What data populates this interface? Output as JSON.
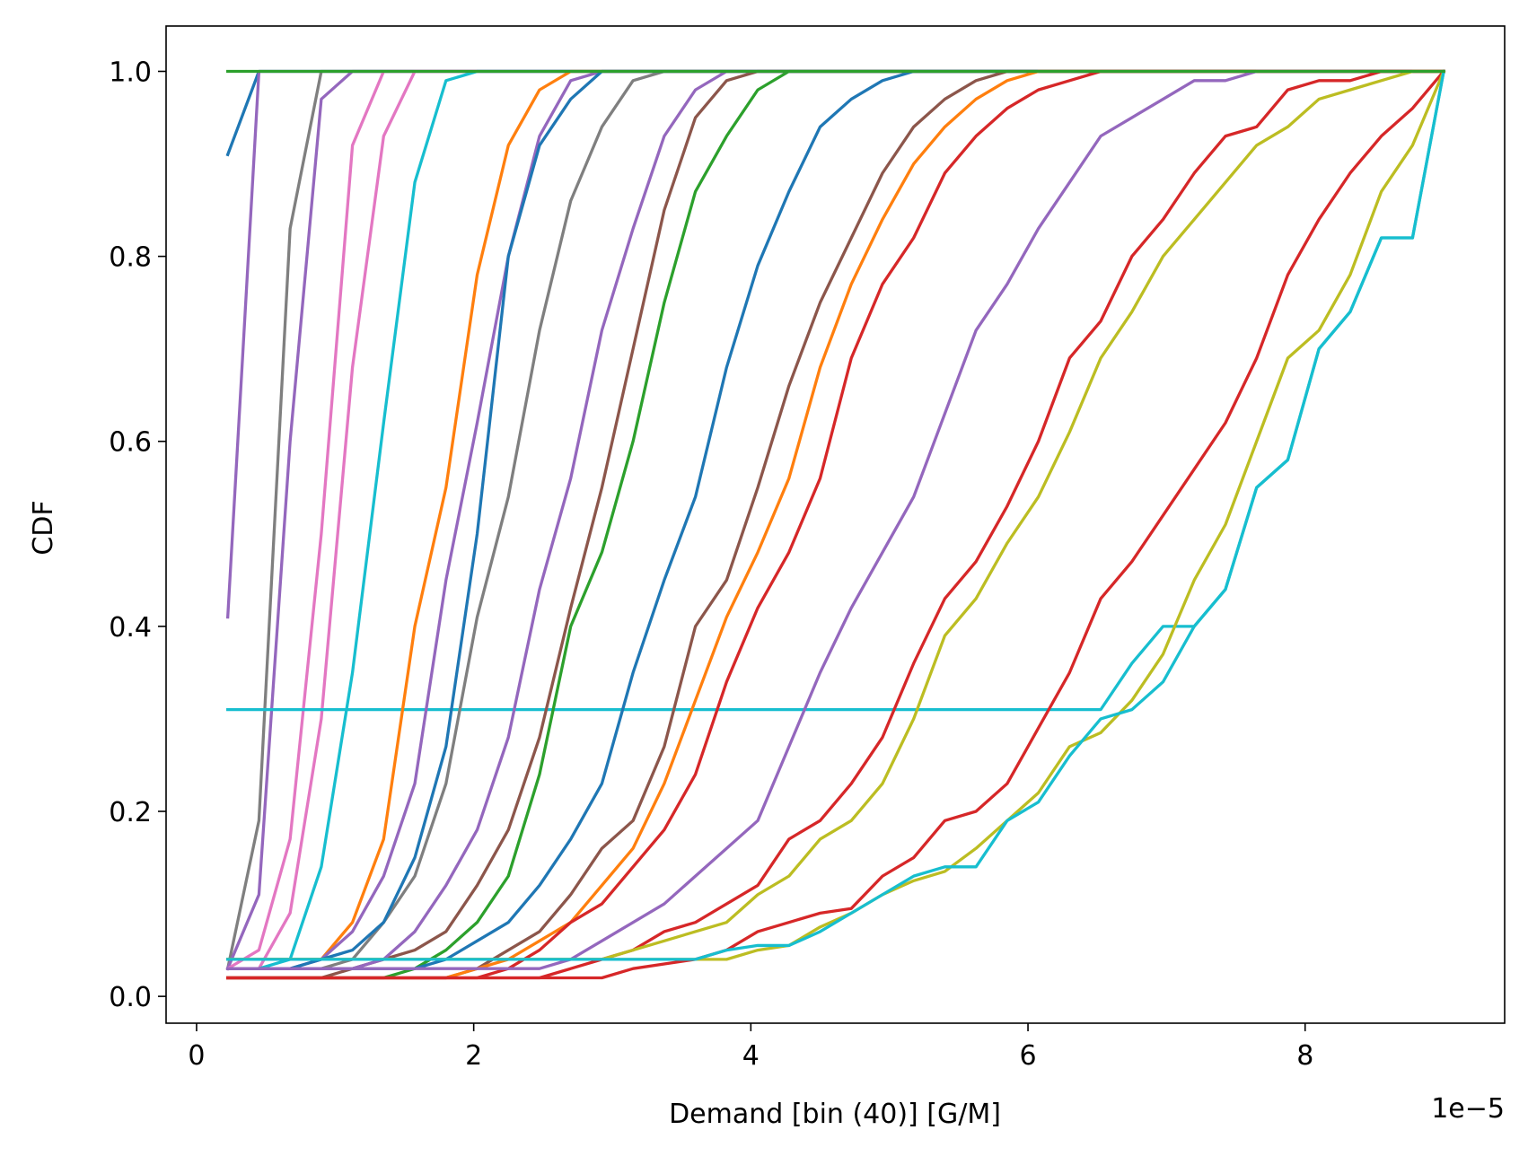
{
  "chart_data": {
    "type": "line",
    "xlabel": "Demand [bin (40)] [G/M]",
    "ylabel": "CDF",
    "x_offset_label": "1e−5",
    "xlim": [
      -0.22,
      9.44
    ],
    "ylim": [
      -0.029,
      1.049
    ],
    "xticks": [
      0,
      2,
      4,
      6,
      8
    ],
    "yticks": [
      {
        "value": 0,
        "label": "0.0"
      },
      0.2,
      0.4,
      0.6,
      0.8,
      {
        "value": 1,
        "label": "1.0"
      }
    ],
    "x": [
      0.225,
      0.45,
      0.675,
      0.9,
      1.125,
      1.35,
      1.575,
      1.8,
      2.025,
      2.25,
      2.475,
      2.7,
      2.925,
      3.15,
      3.375,
      3.6,
      3.825,
      4.05,
      4.275,
      4.5,
      4.725,
      4.95,
      5.175,
      5.4,
      5.625,
      5.85,
      6.075,
      6.3,
      6.525,
      6.75,
      6.975,
      7.2,
      7.425,
      7.65,
      7.875,
      8.1,
      8.325,
      8.55,
      8.775,
      9.0
    ],
    "series": [
      {
        "color": "#1f77b4",
        "values": [
          0.91,
          1,
          1,
          1,
          1,
          1,
          1,
          1,
          1,
          1,
          1,
          1,
          1,
          1,
          1,
          1,
          1,
          1,
          1,
          1,
          1,
          1,
          1,
          1,
          1,
          1,
          1,
          1,
          1,
          1,
          1,
          1,
          1,
          1,
          1,
          1,
          1,
          1,
          1,
          1
        ]
      },
      {
        "color": "#9467bd",
        "values": [
          0.41,
          1,
          1,
          1,
          1,
          1,
          1,
          1,
          1,
          1,
          1,
          1,
          1,
          1,
          1,
          1,
          1,
          1,
          1,
          1,
          1,
          1,
          1,
          1,
          1,
          1,
          1,
          1,
          1,
          1,
          1,
          1,
          1,
          1,
          1,
          1,
          1,
          1,
          1,
          1
        ]
      },
      {
        "color": "#7f7f7f",
        "values": [
          0.03,
          0.19,
          0.83,
          1,
          1,
          1,
          1,
          1,
          1,
          1,
          1,
          1,
          1,
          1,
          1,
          1,
          1,
          1,
          1,
          1,
          1,
          1,
          1,
          1,
          1,
          1,
          1,
          1,
          1,
          1,
          1,
          1,
          1,
          1,
          1,
          1,
          1,
          1,
          1,
          1
        ]
      },
      {
        "color": "#9467bd",
        "values": [
          0.03,
          0.11,
          0.6,
          0.97,
          1,
          1,
          1,
          1,
          1,
          1,
          1,
          1,
          1,
          1,
          1,
          1,
          1,
          1,
          1,
          1,
          1,
          1,
          1,
          1,
          1,
          1,
          1,
          1,
          1,
          1,
          1,
          1,
          1,
          1,
          1,
          1,
          1,
          1,
          1,
          1
        ]
      },
      {
        "color": "#e377c2",
        "values": [
          0.03,
          0.05,
          0.17,
          0.5,
          0.92,
          1,
          1,
          1,
          1,
          1,
          1,
          1,
          1,
          1,
          1,
          1,
          1,
          1,
          1,
          1,
          1,
          1,
          1,
          1,
          1,
          1,
          1,
          1,
          1,
          1,
          1,
          1,
          1,
          1,
          1,
          1,
          1,
          1,
          1,
          1
        ]
      },
      {
        "color": "#e377c2",
        "values": [
          0.03,
          0.03,
          0.09,
          0.3,
          0.68,
          0.93,
          1,
          1,
          1,
          1,
          1,
          1,
          1,
          1,
          1,
          1,
          1,
          1,
          1,
          1,
          1,
          1,
          1,
          1,
          1,
          1,
          1,
          1,
          1,
          1,
          1,
          1,
          1,
          1,
          1,
          1,
          1,
          1,
          1,
          1
        ]
      },
      {
        "color": "#17becf",
        "values": [
          0.03,
          0.03,
          0.04,
          0.14,
          0.35,
          0.62,
          0.88,
          0.99,
          1,
          1,
          1,
          1,
          1,
          1,
          1,
          1,
          1,
          1,
          1,
          1,
          1,
          1,
          1,
          1,
          1,
          1,
          1,
          1,
          1,
          1,
          1,
          1,
          1,
          1,
          1,
          1,
          1,
          1,
          1,
          1
        ]
      },
      {
        "color": "#17becf",
        "values": [
          0.31,
          0.31,
          0.31,
          0.31,
          0.31,
          0.31,
          0.31,
          0.31,
          0.31,
          0.31,
          0.31,
          0.31,
          0.31,
          0.31,
          0.31,
          0.31,
          0.31,
          0.31,
          0.31,
          0.31,
          0.31,
          0.31,
          0.31,
          0.31,
          0.31,
          0.31,
          0.31,
          0.31,
          0.31,
          0.36,
          0.4,
          0.4,
          0.44,
          0.55,
          0.58,
          0.7,
          0.74,
          0.82,
          0.82,
          1
        ]
      },
      {
        "color": "#ff7f0e",
        "values": [
          0.04,
          0.04,
          0.04,
          0.04,
          0.08,
          0.17,
          0.4,
          0.55,
          0.78,
          0.92,
          0.98,
          1,
          1,
          1,
          1,
          1,
          1,
          1,
          1,
          1,
          1,
          1,
          1,
          1,
          1,
          1,
          1,
          1,
          1,
          1,
          1,
          1,
          1,
          1,
          1,
          1,
          1,
          1,
          1,
          1
        ]
      },
      {
        "color": "#9467bd",
        "values": [
          0.03,
          0.03,
          0.03,
          0.04,
          0.07,
          0.13,
          0.23,
          0.45,
          0.62,
          0.8,
          0.93,
          0.99,
          1,
          1,
          1,
          1,
          1,
          1,
          1,
          1,
          1,
          1,
          1,
          1,
          1,
          1,
          1,
          1,
          1,
          1,
          1,
          1,
          1,
          1,
          1,
          1,
          1,
          1,
          1,
          1
        ]
      },
      {
        "color": "#7f7f7f",
        "values": [
          0.03,
          0.03,
          0.03,
          0.03,
          0.04,
          0.08,
          0.13,
          0.23,
          0.41,
          0.54,
          0.72,
          0.86,
          0.94,
          0.99,
          1,
          1,
          1,
          1,
          1,
          1,
          1,
          1,
          1,
          1,
          1,
          1,
          1,
          1,
          1,
          1,
          1,
          1,
          1,
          1,
          1,
          1,
          1,
          1,
          1,
          1
        ]
      },
      {
        "color": "#1f77b4",
        "values": [
          0.03,
          0.03,
          0.03,
          0.04,
          0.05,
          0.08,
          0.15,
          0.27,
          0.5,
          0.8,
          0.92,
          0.97,
          1,
          1,
          1,
          1,
          1,
          1,
          1,
          1,
          1,
          1,
          1,
          1,
          1,
          1,
          1,
          1,
          1,
          1,
          1,
          1,
          1,
          1,
          1,
          1,
          1,
          1,
          1,
          1
        ]
      },
      {
        "color": "#8c564b",
        "values": [
          0.02,
          0.02,
          0.02,
          0.02,
          0.03,
          0.04,
          0.05,
          0.07,
          0.12,
          0.18,
          0.28,
          0.42,
          0.55,
          0.7,
          0.85,
          0.95,
          0.99,
          1,
          1,
          1,
          1,
          1,
          1,
          1,
          1,
          1,
          1,
          1,
          1,
          1,
          1,
          1,
          1,
          1,
          1,
          1,
          1,
          1,
          1,
          1
        ]
      },
      {
        "color": "#2ca02c",
        "values": [
          0.02,
          0.02,
          0.02,
          0.02,
          0.02,
          0.02,
          0.03,
          0.05,
          0.08,
          0.13,
          0.24,
          0.4,
          0.48,
          0.6,
          0.75,
          0.87,
          0.93,
          0.98,
          1,
          1,
          1,
          1,
          1,
          1,
          1,
          1,
          1,
          1,
          1,
          1,
          1,
          1,
          1,
          1,
          1,
          1,
          1,
          1,
          1,
          1
        ]
      },
      {
        "color": "#1f77b4",
        "values": [
          0.03,
          0.03,
          0.03,
          0.03,
          0.03,
          0.03,
          0.03,
          0.04,
          0.06,
          0.08,
          0.12,
          0.17,
          0.23,
          0.35,
          0.45,
          0.54,
          0.68,
          0.79,
          0.87,
          0.94,
          0.97,
          0.99,
          1,
          1,
          1,
          1,
          1,
          1,
          1,
          1,
          1,
          1,
          1,
          1,
          1,
          1,
          1,
          1,
          1,
          1
        ]
      },
      {
        "color": "#9467bd",
        "values": [
          0.03,
          0.03,
          0.03,
          0.03,
          0.03,
          0.04,
          0.07,
          0.12,
          0.18,
          0.28,
          0.44,
          0.56,
          0.72,
          0.83,
          0.93,
          0.98,
          1,
          1,
          1,
          1,
          1,
          1,
          1,
          1,
          1,
          1,
          1,
          1,
          1,
          1,
          1,
          1,
          1,
          1,
          1,
          1,
          1,
          1,
          1,
          1
        ]
      },
      {
        "color": "#8c564b",
        "values": [
          0.02,
          0.02,
          0.02,
          0.02,
          0.02,
          0.02,
          0.02,
          0.02,
          0.03,
          0.05,
          0.07,
          0.11,
          0.16,
          0.19,
          0.27,
          0.4,
          0.45,
          0.55,
          0.66,
          0.75,
          0.82,
          0.89,
          0.94,
          0.97,
          0.99,
          1,
          1,
          1,
          1,
          1,
          1,
          1,
          1,
          1,
          1,
          1,
          1,
          1,
          1,
          1
        ]
      },
      {
        "color": "#ff7f0e",
        "values": [
          0.02,
          0.02,
          0.02,
          0.02,
          0.02,
          0.02,
          0.02,
          0.02,
          0.03,
          0.04,
          0.06,
          0.08,
          0.12,
          0.16,
          0.23,
          0.32,
          0.41,
          0.48,
          0.56,
          0.68,
          0.77,
          0.84,
          0.9,
          0.94,
          0.97,
          0.99,
          1,
          1,
          1,
          1,
          1,
          1,
          1,
          1,
          1,
          1,
          1,
          1,
          1,
          1
        ]
      },
      {
        "color": "#d62728",
        "values": [
          0.02,
          0.02,
          0.02,
          0.02,
          0.02,
          0.02,
          0.02,
          0.02,
          0.02,
          0.03,
          0.05,
          0.08,
          0.1,
          0.14,
          0.18,
          0.24,
          0.34,
          0.42,
          0.48,
          0.56,
          0.69,
          0.77,
          0.82,
          0.89,
          0.93,
          0.96,
          0.98,
          0.99,
          1,
          1,
          1,
          1,
          1,
          1,
          1,
          1,
          1,
          1,
          1,
          1
        ]
      },
      {
        "color": "#9467bd",
        "values": [
          0.03,
          0.03,
          0.03,
          0.03,
          0.03,
          0.03,
          0.03,
          0.03,
          0.03,
          0.03,
          0.03,
          0.04,
          0.06,
          0.08,
          0.1,
          0.13,
          0.16,
          0.19,
          0.27,
          0.35,
          0.42,
          0.48,
          0.54,
          0.63,
          0.72,
          0.77,
          0.83,
          0.88,
          0.93,
          0.95,
          0.97,
          0.99,
          0.99,
          1,
          1,
          1,
          1,
          1,
          1,
          1
        ]
      },
      {
        "color": "#d62728",
        "values": [
          0.02,
          0.02,
          0.02,
          0.02,
          0.02,
          0.02,
          0.02,
          0.02,
          0.02,
          0.02,
          0.02,
          0.03,
          0.04,
          0.05,
          0.07,
          0.08,
          0.1,
          0.12,
          0.17,
          0.19,
          0.23,
          0.28,
          0.36,
          0.43,
          0.47,
          0.53,
          0.6,
          0.69,
          0.73,
          0.8,
          0.84,
          0.89,
          0.93,
          0.94,
          0.98,
          0.99,
          0.99,
          1,
          1,
          1
        ]
      },
      {
        "color": "#bcbd22",
        "values": [
          0.04,
          0.04,
          0.04,
          0.04,
          0.04,
          0.04,
          0.04,
          0.04,
          0.04,
          0.04,
          0.04,
          0.04,
          0.04,
          0.05,
          0.06,
          0.07,
          0.08,
          0.11,
          0.13,
          0.17,
          0.19,
          0.23,
          0.3,
          0.39,
          0.43,
          0.49,
          0.54,
          0.61,
          0.69,
          0.74,
          0.8,
          0.84,
          0.88,
          0.92,
          0.94,
          0.97,
          0.98,
          0.99,
          1,
          1
        ]
      },
      {
        "color": "#d62728",
        "values": [
          0.02,
          0.02,
          0.02,
          0.02,
          0.02,
          0.02,
          0.02,
          0.02,
          0.02,
          0.02,
          0.02,
          0.02,
          0.02,
          0.03,
          0.035,
          0.04,
          0.05,
          0.07,
          0.08,
          0.09,
          0.095,
          0.13,
          0.15,
          0.19,
          0.2,
          0.23,
          0.29,
          0.35,
          0.43,
          0.47,
          0.52,
          0.57,
          0.62,
          0.69,
          0.78,
          0.84,
          0.89,
          0.93,
          0.96,
          1
        ]
      },
      {
        "color": "#bcbd22",
        "values": [
          0.04,
          0.04,
          0.04,
          0.04,
          0.04,
          0.04,
          0.04,
          0.04,
          0.04,
          0.04,
          0.04,
          0.04,
          0.04,
          0.04,
          0.04,
          0.04,
          0.04,
          0.05,
          0.055,
          0.075,
          0.09,
          0.11,
          0.125,
          0.135,
          0.16,
          0.19,
          0.22,
          0.27,
          0.285,
          0.32,
          0.37,
          0.45,
          0.51,
          0.6,
          0.69,
          0.72,
          0.78,
          0.87,
          0.92,
          1
        ]
      },
      {
        "color": "#17becf",
        "values": [
          0.04,
          0.04,
          0.04,
          0.04,
          0.04,
          0.04,
          0.04,
          0.04,
          0.04,
          0.04,
          0.04,
          0.04,
          0.04,
          0.04,
          0.04,
          0.04,
          0.05,
          0.055,
          0.055,
          0.07,
          0.09,
          0.11,
          0.13,
          0.14,
          0.14,
          0.19,
          0.21,
          0.26,
          0.3,
          0.31,
          0.34,
          0.4,
          0.44,
          0.55,
          0.58,
          0.7,
          0.74,
          0.82,
          0.82,
          1
        ]
      },
      {
        "color": "#2ca02c",
        "values": [
          1,
          1,
          1,
          1,
          1,
          1,
          1,
          1,
          1,
          1,
          1,
          1,
          1,
          1,
          1,
          1,
          1,
          1,
          1,
          1,
          1,
          1,
          1,
          1,
          1,
          1,
          1,
          1,
          1,
          1,
          1,
          1,
          1,
          1,
          1,
          1,
          1,
          1,
          1,
          1
        ]
      }
    ]
  }
}
